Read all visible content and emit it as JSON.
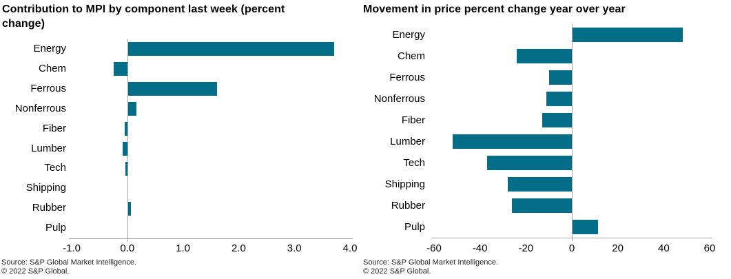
{
  "colors": {
    "bar": "#046e89",
    "axis": "#a6a6a6",
    "background": "#ffffff",
    "text": "#000000"
  },
  "charts": [
    {
      "title": "Contribution to MPI by component last week (percent change)",
      "source_line1": "Source: S&P Global Market Intelligence.",
      "source_line2": "© 2022 S&P Global."
    },
    {
      "title": "Movement in price percent change year over year",
      "source_line1": "Source: S&P Global Market Intelligence.",
      "source_line2": "© 2022 S&P Global."
    }
  ],
  "chart_data": [
    {
      "type": "bar",
      "orientation": "horizontal",
      "title": "Contribution to MPI by component last week (percent change)",
      "categories": [
        "Energy",
        "Chem",
        "Ferrous",
        "Nonferrous",
        "Fiber",
        "Lumber",
        "Tech",
        "Shipping",
        "Rubber",
        "Pulp"
      ],
      "values": [
        3.7,
        -0.25,
        1.6,
        0.15,
        -0.05,
        -0.08,
        -0.03,
        0,
        0.05,
        0
      ],
      "xlabel": "",
      "ylabel": "",
      "xlim": [
        -1.0,
        4.0
      ],
      "tick_values": [
        -1,
        0,
        1,
        2,
        3,
        4
      ],
      "tick_labels": [
        "-1.0",
        "0.0",
        "1.0",
        "2.0",
        "3.0",
        "4.0"
      ],
      "grid": false,
      "legend": "none",
      "bar_color": "#046e89"
    },
    {
      "type": "bar",
      "orientation": "horizontal",
      "title": "Movement in price percent change year over year",
      "categories": [
        "Energy",
        "Chem",
        "Ferrous",
        "Nonferrous",
        "Fiber",
        "Lumber",
        "Tech",
        "Shipping",
        "Rubber",
        "Pulp"
      ],
      "values": [
        48,
        -24,
        -10,
        -11,
        -13,
        -52,
        -37,
        -28,
        -26,
        11
      ],
      "xlabel": "",
      "ylabel": "",
      "xlim": [
        -60,
        60
      ],
      "tick_values": [
        -60,
        -40,
        -20,
        0,
        20,
        40,
        60
      ],
      "tick_labels": [
        "-60",
        "-40",
        "-20",
        "0",
        "20",
        "40",
        "60"
      ],
      "grid": false,
      "legend": "none",
      "bar_color": "#046e89"
    }
  ]
}
